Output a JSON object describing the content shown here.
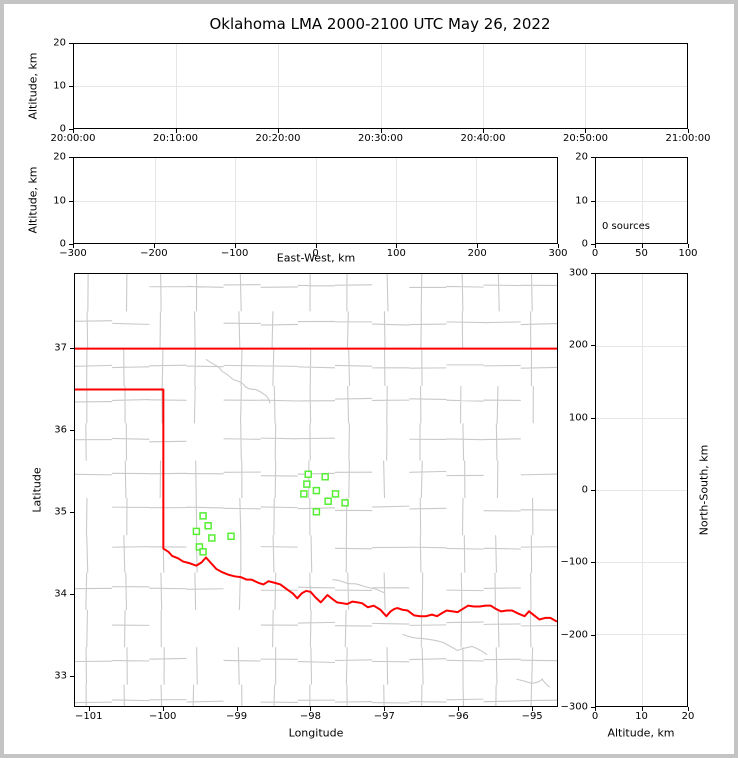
{
  "title": "Oklahoma LMA 2000-2100 UTC May 26, 2022",
  "colors": {
    "grid": "#e6e6e6",
    "county_boundary": "#c9c9c9",
    "state_boundary": "#ff0000",
    "station_marker": "#55ee33",
    "frame": "#c4c4c4",
    "axis": "#000000"
  },
  "panels": {
    "time_height": {
      "ylabel": "Altitude, km",
      "xticks": {
        "labels": [
          "20:00:00",
          "20:10:00",
          "20:20:00",
          "20:30:00",
          "20:40:00",
          "20:50:00",
          "21:00:00"
        ],
        "pos": [
          0,
          0.16667,
          0.33333,
          0.5,
          0.66667,
          0.83333,
          1
        ]
      },
      "yticks": {
        "labels": [
          "20",
          "10",
          "0"
        ],
        "pos": [
          0,
          0.5,
          1
        ]
      },
      "xgrid": [
        0.16667,
        0.33333,
        0.5,
        0.66667,
        0.83333
      ],
      "ygrid": [
        0.5
      ]
    },
    "ew_height": {
      "xlabel": "East-West, km",
      "ylabel": "Altitude, km",
      "xticks": {
        "labels": [
          "−300",
          "−200",
          "−100",
          "0",
          "100",
          "200",
          "300"
        ],
        "pos": [
          0,
          0.16667,
          0.33333,
          0.5,
          0.66667,
          0.83333,
          1
        ]
      },
      "yticks": {
        "labels": [
          "20",
          "10",
          "0"
        ],
        "pos": [
          0,
          0.5,
          1
        ]
      },
      "xgrid": [
        0.16667,
        0.33333,
        0.5,
        0.66667,
        0.83333
      ],
      "ygrid": [
        0.5
      ]
    },
    "histogram": {
      "annotation": "0 sources",
      "xticks": {
        "labels": [
          "0",
          "50",
          "100"
        ],
        "pos": [
          0,
          0.5,
          1
        ]
      },
      "yticks": {
        "labels": [
          "20",
          "10",
          "0"
        ],
        "pos": [
          0,
          0.5,
          1
        ]
      },
      "xgrid": [
        0.5
      ],
      "ygrid": [
        0.5
      ]
    },
    "map": {
      "xlabel": "Longitude",
      "ylabel": "Latitude",
      "xticks": {
        "labels": [
          "−101",
          "−100",
          "−99",
          "−98",
          "−97",
          "−96",
          "−95"
        ],
        "pos": [
          0.03053,
          0.18321,
          0.33588,
          0.48855,
          0.64122,
          0.79389,
          0.94656
        ]
      },
      "yticks": {
        "labels": [
          "37",
          "36",
          "35",
          "34",
          "33"
        ],
        "pos": [
          0.17281,
          0.36169,
          0.55052,
          0.73938,
          0.92823
        ]
      },
      "xgrid": [],
      "ygrid": []
    },
    "ns_alt": {
      "xlabel": "Altitude, km",
      "ylabel": "North-South, km",
      "xticks": {
        "labels": [
          "0",
          "10",
          "20"
        ],
        "pos": [
          0,
          0.5,
          1
        ]
      },
      "yticks": {
        "labels": [
          "300",
          "200",
          "100",
          "0",
          "−100",
          "−200",
          "−300"
        ],
        "pos": [
          0,
          0.16667,
          0.33333,
          0.5,
          0.66667,
          0.83333,
          1
        ]
      },
      "xgrid": [
        0.5
      ],
      "ygrid": [
        0.16667,
        0.33333,
        0.5,
        0.66667,
        0.83333
      ]
    }
  },
  "chart_data": [
    {
      "type": "scatter",
      "panel": "time-height",
      "ylabel": "Altitude, km",
      "ylim": [
        0,
        20
      ],
      "x_ticks": [
        "20:00:00",
        "20:10:00",
        "20:20:00",
        "20:30:00",
        "20:40:00",
        "20:50:00",
        "21:00:00"
      ],
      "grid": true,
      "series": []
    },
    {
      "type": "scatter",
      "panel": "ew-height",
      "xlabel": "East-West, km",
      "ylabel": "Altitude, km",
      "xlim": [
        -300,
        300
      ],
      "ylim": [
        0,
        20
      ],
      "grid": true,
      "series": []
    },
    {
      "type": "bar",
      "panel": "source-count-histogram",
      "xlim": [
        0,
        100
      ],
      "ylim": [
        0,
        20
      ],
      "annotation": "0 sources",
      "values": []
    },
    {
      "type": "scatter",
      "panel": "plan-view-map",
      "xlabel": "Longitude",
      "ylabel": "Latitude",
      "xlim": [
        -101.2,
        -94.65
      ],
      "ylim": [
        32.62,
        37.915
      ],
      "grid": false,
      "series": [
        {
          "name": "lma-stations",
          "marker": "open-square",
          "color": "#55ee33",
          "points": [
            [
              -99.46,
              34.95
            ],
            [
              -99.39,
              34.83
            ],
            [
              -99.55,
              34.76
            ],
            [
              -99.34,
              34.68
            ],
            [
              -99.08,
              34.7
            ],
            [
              -99.51,
              34.57
            ],
            [
              -99.46,
              34.51
            ],
            [
              -98.03,
              35.46
            ],
            [
              -97.8,
              35.43
            ],
            [
              -98.05,
              35.34
            ],
            [
              -97.92,
              35.26
            ],
            [
              -98.09,
              35.22
            ],
            [
              -97.66,
              35.22
            ],
            [
              -97.76,
              35.13
            ],
            [
              -97.53,
              35.11
            ],
            [
              -97.92,
              35.0
            ]
          ]
        }
      ],
      "boundaries": {
        "state_color": "#ff0000",
        "kansas_border_lat": 37.0,
        "panhandle_south_lat": 36.5,
        "panhandle_east_lon": -100.0,
        "red_river": [
          [
            -100.0,
            34.55
          ],
          [
            -99.93,
            34.51
          ],
          [
            -99.88,
            34.46
          ],
          [
            -99.8,
            34.43
          ],
          [
            -99.73,
            34.39
          ],
          [
            -99.64,
            34.37
          ],
          [
            -99.55,
            34.34
          ],
          [
            -99.48,
            34.38
          ],
          [
            -99.42,
            34.44
          ],
          [
            -99.35,
            34.37
          ],
          [
            -99.28,
            34.3
          ],
          [
            -99.2,
            34.26
          ],
          [
            -99.12,
            34.23
          ],
          [
            -99.03,
            34.21
          ],
          [
            -98.95,
            34.2
          ],
          [
            -98.87,
            34.17
          ],
          [
            -98.8,
            34.17
          ],
          [
            -98.71,
            34.13
          ],
          [
            -98.64,
            34.11
          ],
          [
            -98.57,
            34.15
          ],
          [
            -98.49,
            34.13
          ],
          [
            -98.41,
            34.11
          ],
          [
            -98.32,
            34.05
          ],
          [
            -98.24,
            34.0
          ],
          [
            -98.18,
            33.94
          ],
          [
            -98.12,
            34.0
          ],
          [
            -98.06,
            34.03
          ],
          [
            -98.0,
            34.02
          ],
          [
            -97.93,
            33.95
          ],
          [
            -97.86,
            33.89
          ],
          [
            -97.81,
            33.94
          ],
          [
            -97.77,
            33.98
          ],
          [
            -97.7,
            33.93
          ],
          [
            -97.64,
            33.89
          ],
          [
            -97.57,
            33.88
          ],
          [
            -97.5,
            33.87
          ],
          [
            -97.43,
            33.9
          ],
          [
            -97.36,
            33.89
          ],
          [
            -97.3,
            33.88
          ],
          [
            -97.22,
            33.83
          ],
          [
            -97.14,
            33.85
          ],
          [
            -97.05,
            33.8
          ],
          [
            -97.0,
            33.75
          ],
          [
            -96.97,
            33.72
          ],
          [
            -96.91,
            33.78
          ],
          [
            -96.86,
            33.81
          ],
          [
            -96.82,
            33.82
          ],
          [
            -96.75,
            33.8
          ],
          [
            -96.68,
            33.79
          ],
          [
            -96.59,
            33.73
          ],
          [
            -96.51,
            33.72
          ],
          [
            -96.43,
            33.72
          ],
          [
            -96.35,
            33.74
          ],
          [
            -96.28,
            33.72
          ],
          [
            -96.21,
            33.76
          ],
          [
            -96.15,
            33.79
          ],
          [
            -96.07,
            33.78
          ],
          [
            -96.0,
            33.77
          ],
          [
            -95.93,
            33.81
          ],
          [
            -95.86,
            33.85
          ],
          [
            -95.78,
            33.84
          ],
          [
            -95.7,
            33.84
          ],
          [
            -95.62,
            33.85
          ],
          [
            -95.55,
            33.85
          ],
          [
            -95.48,
            33.81
          ],
          [
            -95.41,
            33.78
          ],
          [
            -95.33,
            33.79
          ],
          [
            -95.26,
            33.79
          ],
          [
            -95.17,
            33.75
          ],
          [
            -95.09,
            33.72
          ],
          [
            -95.03,
            33.78
          ],
          [
            -94.96,
            33.73
          ],
          [
            -94.89,
            33.68
          ],
          [
            -94.81,
            33.7
          ],
          [
            -94.74,
            33.7
          ],
          [
            -94.66,
            33.66
          ]
        ],
        "county_river_lines": [
          [
            [
              -99.42,
              36.87
            ],
            [
              -99.3,
              36.8
            ],
            [
              -99.2,
              36.72
            ],
            [
              -99.05,
              36.62
            ],
            [
              -98.9,
              36.55
            ],
            [
              -98.75,
              36.5
            ],
            [
              -98.6,
              36.42
            ],
            [
              -98.55,
              36.33
            ]
          ],
          [
            [
              -97.7,
              34.17
            ],
            [
              -97.55,
              34.14
            ],
            [
              -97.4,
              34.12
            ],
            [
              -97.25,
              34.08
            ],
            [
              -97.1,
              34.05
            ],
            [
              -97.0,
              34.01
            ]
          ],
          [
            [
              -96.75,
              33.5
            ],
            [
              -96.5,
              33.45
            ],
            [
              -96.2,
              33.4
            ],
            [
              -96.0,
              33.3
            ],
            [
              -95.8,
              33.35
            ],
            [
              -95.6,
              33.25
            ]
          ],
          [
            [
              -95.2,
              32.95
            ],
            [
              -95.0,
              32.9
            ],
            [
              -94.85,
              32.95
            ],
            [
              -94.75,
              32.85
            ]
          ]
        ]
      }
    },
    {
      "type": "scatter",
      "panel": "ns-height",
      "xlabel": "Altitude, km",
      "ylabel": "North-South, km",
      "xlim": [
        0,
        20
      ],
      "ylim": [
        -300,
        300
      ],
      "grid": true,
      "series": []
    }
  ]
}
